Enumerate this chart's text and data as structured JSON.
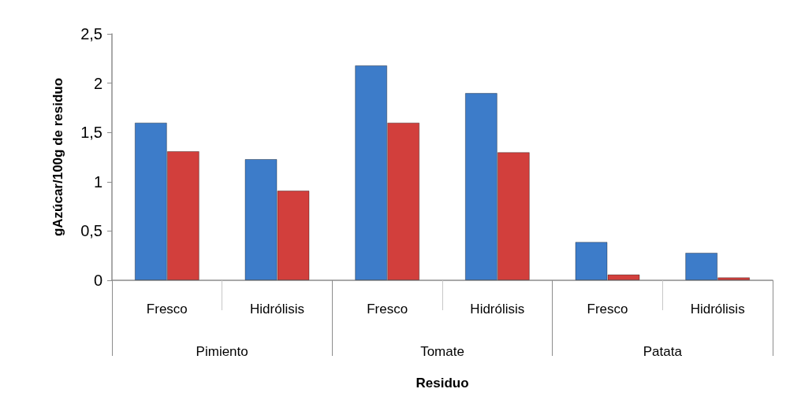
{
  "chart_data": {
    "type": "bar",
    "xlabel": "Residuo",
    "ylabel": "gAzúcar/100g de residuo",
    "categories": [
      "Fresco",
      "Hidrólisis",
      "Fresco",
      "Hidrólisis",
      "Fresco",
      "Hidrólisis"
    ],
    "annotations": [
      "Pimiento",
      "Tomate",
      "Patata"
    ],
    "series": [
      {
        "color": "#3d7cc9",
        "values": [
          1.6,
          1.23,
          2.18,
          1.9,
          0.39,
          0.28
        ]
      },
      {
        "color": "#d23f3c",
        "values": [
          1.31,
          0.91,
          1.6,
          1.3,
          0.06,
          0.03
        ]
      }
    ],
    "ylim": [
      0,
      2.5
    ],
    "yticks": [
      0,
      {
        "value": 0.5,
        "label": "0,5"
      },
      1,
      {
        "value": 1.5,
        "label": "1,5"
      },
      2,
      {
        "value": 2.5,
        "label": "2,5"
      }
    ],
    "grid": false
  }
}
